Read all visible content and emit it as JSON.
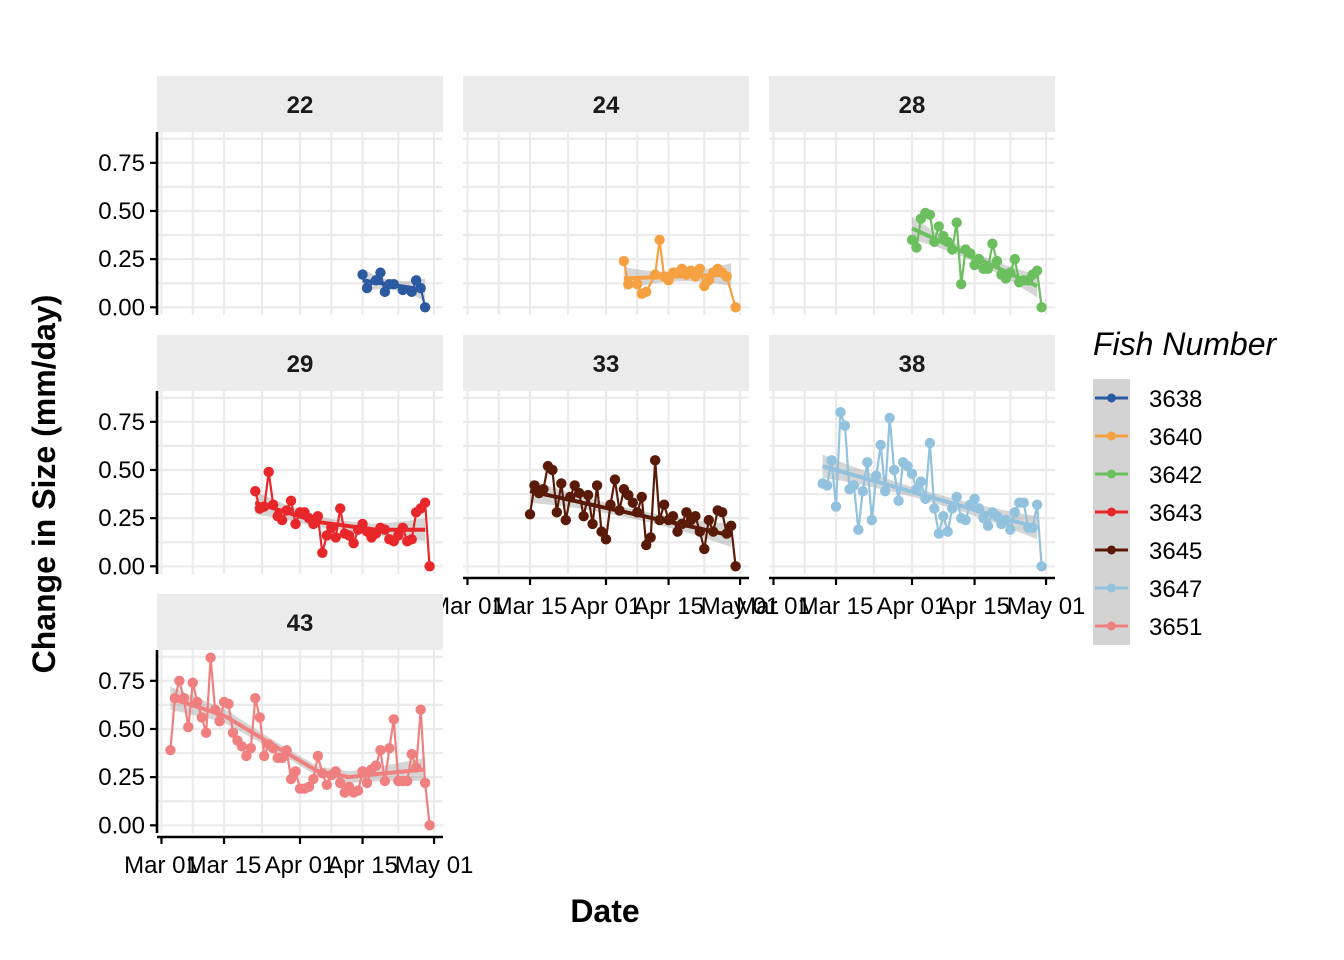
{
  "chart_data": {
    "type": "line",
    "xlabel": "Date",
    "ylabel": "Change in Size (mm/day)",
    "legend_title": "Fish Number",
    "legend_position": "right",
    "x_ticks": [
      "Mar 01",
      "Mar 15",
      "Apr 01",
      "Apr 15",
      "May 01"
    ],
    "x_tick_dates": [
      "2021-03-01",
      "2021-03-15",
      "2021-04-01",
      "2021-04-15",
      "2021-05-01"
    ],
    "xlim": [
      "2021-02-28",
      "2021-05-03"
    ],
    "y_ticks": [
      "0.00",
      "0.25",
      "0.50",
      "0.75"
    ],
    "y_tick_values": [
      0,
      0.25,
      0.5,
      0.75
    ],
    "ylim": [
      -0.04,
      0.91
    ],
    "grid": true,
    "series": [
      {
        "name": "3638",
        "facet": "22",
        "color": "#2c5aa0",
        "x": [
          "2021-04-15",
          "2021-04-16",
          "2021-04-18",
          "2021-04-19",
          "2021-04-20",
          "2021-04-21",
          "2021-04-22",
          "2021-04-24",
          "2021-04-26",
          "2021-04-27",
          "2021-04-28",
          "2021-04-29"
        ],
        "y": [
          0.17,
          0.1,
          0.14,
          0.18,
          0.08,
          0.12,
          0.12,
          0.09,
          0.08,
          0.14,
          0.1,
          0.0
        ],
        "trend": [
          [
            "2021-04-15",
            0.14
          ],
          [
            "2021-04-29",
            0.09
          ]
        ]
      },
      {
        "name": "3640",
        "facet": "24",
        "color": "#f5a142",
        "x": [
          "2021-04-05",
          "2021-04-06",
          "2021-04-08",
          "2021-04-09",
          "2021-04-10",
          "2021-04-12",
          "2021-04-13",
          "2021-04-14",
          "2021-04-15",
          "2021-04-16",
          "2021-04-17",
          "2021-04-18",
          "2021-04-19",
          "2021-04-20",
          "2021-04-21",
          "2021-04-22",
          "2021-04-23",
          "2021-04-24",
          "2021-04-25",
          "2021-04-26",
          "2021-04-27",
          "2021-04-28",
          "2021-04-30"
        ],
        "y": [
          0.24,
          0.12,
          0.12,
          0.07,
          0.08,
          0.17,
          0.35,
          0.16,
          0.14,
          0.18,
          0.18,
          0.2,
          0.17,
          0.19,
          0.16,
          0.2,
          0.11,
          0.14,
          0.18,
          0.2,
          0.18,
          0.16,
          0.0
        ],
        "trend": [
          [
            "2021-04-05",
            0.15
          ],
          [
            "2021-04-29",
            0.17
          ]
        ]
      },
      {
        "name": "3642",
        "facet": "28",
        "color": "#6cbf5f",
        "x": [
          "2021-04-01",
          "2021-04-02",
          "2021-04-03",
          "2021-04-04",
          "2021-04-05",
          "2021-04-06",
          "2021-04-07",
          "2021-04-08",
          "2021-04-09",
          "2021-04-10",
          "2021-04-11",
          "2021-04-12",
          "2021-04-13",
          "2021-04-14",
          "2021-04-15",
          "2021-04-16",
          "2021-04-17",
          "2021-04-18",
          "2021-04-19",
          "2021-04-20",
          "2021-04-21",
          "2021-04-22",
          "2021-04-23",
          "2021-04-24",
          "2021-04-25",
          "2021-04-26",
          "2021-04-27",
          "2021-04-28",
          "2021-04-29",
          "2021-04-30"
        ],
        "y": [
          0.35,
          0.31,
          0.46,
          0.49,
          0.48,
          0.34,
          0.42,
          0.37,
          0.34,
          0.3,
          0.44,
          0.12,
          0.3,
          0.28,
          0.22,
          0.25,
          0.2,
          0.2,
          0.33,
          0.24,
          0.17,
          0.15,
          0.18,
          0.25,
          0.13,
          0.14,
          0.14,
          0.17,
          0.19,
          0.0
        ],
        "trend": [
          [
            "2021-04-01",
            0.41
          ],
          [
            "2021-04-29",
            0.11
          ]
        ]
      },
      {
        "name": "3643",
        "facet": "29",
        "color": "#e8272b",
        "x": [
          "2021-03-22",
          "2021-03-23",
          "2021-03-24",
          "2021-03-25",
          "2021-03-26",
          "2021-03-27",
          "2021-03-28",
          "2021-03-29",
          "2021-03-30",
          "2021-03-31",
          "2021-04-01",
          "2021-04-02",
          "2021-04-03",
          "2021-04-04",
          "2021-04-05",
          "2021-04-06",
          "2021-04-07",
          "2021-04-08",
          "2021-04-09",
          "2021-04-10",
          "2021-04-11",
          "2021-04-12",
          "2021-04-13",
          "2021-04-14",
          "2021-04-15",
          "2021-04-16",
          "2021-04-17",
          "2021-04-18",
          "2021-04-19",
          "2021-04-20",
          "2021-04-21",
          "2021-04-22",
          "2021-04-23",
          "2021-04-24",
          "2021-04-25",
          "2021-04-26",
          "2021-04-27",
          "2021-04-28",
          "2021-04-29",
          "2021-04-30"
        ],
        "y": [
          0.39,
          0.3,
          0.31,
          0.49,
          0.32,
          0.26,
          0.24,
          0.29,
          0.34,
          0.22,
          0.28,
          0.28,
          0.25,
          0.22,
          0.26,
          0.07,
          0.16,
          0.2,
          0.15,
          0.3,
          0.17,
          0.16,
          0.12,
          0.19,
          0.22,
          0.18,
          0.15,
          0.17,
          0.2,
          0.19,
          0.14,
          0.13,
          0.16,
          0.2,
          0.13,
          0.14,
          0.28,
          0.3,
          0.33,
          0.0
        ],
        "trend": [
          [
            "2021-03-22",
            0.33
          ],
          [
            "2021-04-05",
            0.23
          ],
          [
            "2021-04-18",
            0.19
          ],
          [
            "2021-04-29",
            0.19
          ]
        ]
      },
      {
        "name": "3645",
        "facet": "33",
        "color": "#5a1a08",
        "x": [
          "2021-03-15",
          "2021-03-16",
          "2021-03-17",
          "2021-03-18",
          "2021-03-19",
          "2021-03-20",
          "2021-03-21",
          "2021-03-22",
          "2021-03-23",
          "2021-03-24",
          "2021-03-25",
          "2021-03-26",
          "2021-03-27",
          "2021-03-28",
          "2021-03-29",
          "2021-03-30",
          "2021-03-31",
          "2021-04-01",
          "2021-04-02",
          "2021-04-03",
          "2021-04-04",
          "2021-04-05",
          "2021-04-06",
          "2021-04-07",
          "2021-04-08",
          "2021-04-09",
          "2021-04-10",
          "2021-04-11",
          "2021-04-12",
          "2021-04-13",
          "2021-04-14",
          "2021-04-15",
          "2021-04-16",
          "2021-04-17",
          "2021-04-18",
          "2021-04-19",
          "2021-04-20",
          "2021-04-21",
          "2021-04-22",
          "2021-04-23",
          "2021-04-24",
          "2021-04-25",
          "2021-04-26",
          "2021-04-27",
          "2021-04-28",
          "2021-04-29",
          "2021-04-30"
        ],
        "y": [
          0.27,
          0.42,
          0.38,
          0.4,
          0.52,
          0.5,
          0.28,
          0.43,
          0.24,
          0.36,
          0.42,
          0.38,
          0.26,
          0.37,
          0.22,
          0.42,
          0.18,
          0.14,
          0.32,
          0.45,
          0.29,
          0.4,
          0.37,
          0.33,
          0.28,
          0.36,
          0.11,
          0.15,
          0.55,
          0.24,
          0.32,
          0.24,
          0.26,
          0.18,
          0.22,
          0.28,
          0.24,
          0.26,
          0.18,
          0.09,
          0.24,
          0.18,
          0.29,
          0.28,
          0.17,
          0.21,
          0.0
        ],
        "trend": [
          [
            "2021-03-15",
            0.39
          ],
          [
            "2021-04-29",
            0.16
          ]
        ]
      },
      {
        "name": "3647",
        "facet": "38",
        "color": "#92c2de",
        "x": [
          "2021-03-12",
          "2021-03-13",
          "2021-03-14",
          "2021-03-15",
          "2021-03-16",
          "2021-03-17",
          "2021-03-18",
          "2021-03-19",
          "2021-03-20",
          "2021-03-21",
          "2021-03-22",
          "2021-03-23",
          "2021-03-24",
          "2021-03-25",
          "2021-03-26",
          "2021-03-27",
          "2021-03-28",
          "2021-03-29",
          "2021-03-30",
          "2021-03-31",
          "2021-04-01",
          "2021-04-02",
          "2021-04-03",
          "2021-04-04",
          "2021-04-05",
          "2021-04-06",
          "2021-04-07",
          "2021-04-08",
          "2021-04-09",
          "2021-04-10",
          "2021-04-11",
          "2021-04-12",
          "2021-04-13",
          "2021-04-14",
          "2021-04-15",
          "2021-04-16",
          "2021-04-17",
          "2021-04-18",
          "2021-04-19",
          "2021-04-20",
          "2021-04-21",
          "2021-04-22",
          "2021-04-23",
          "2021-04-24",
          "2021-04-25",
          "2021-04-26",
          "2021-04-27",
          "2021-04-28",
          "2021-04-29",
          "2021-04-30"
        ],
        "y": [
          0.43,
          0.42,
          0.55,
          0.31,
          0.8,
          0.73,
          0.4,
          0.42,
          0.19,
          0.39,
          0.54,
          0.24,
          0.47,
          0.63,
          0.39,
          0.77,
          0.5,
          0.34,
          0.54,
          0.52,
          0.48,
          0.4,
          0.44,
          0.35,
          0.64,
          0.3,
          0.17,
          0.26,
          0.18,
          0.3,
          0.36,
          0.25,
          0.24,
          0.32,
          0.35,
          0.3,
          0.25,
          0.21,
          0.28,
          0.26,
          0.22,
          0.24,
          0.19,
          0.28,
          0.33,
          0.33,
          0.2,
          0.2,
          0.32,
          0.0
        ],
        "trend": [
          [
            "2021-03-12",
            0.52
          ],
          [
            "2021-04-29",
            0.2
          ]
        ]
      },
      {
        "name": "3651",
        "facet": "43",
        "color": "#f08080",
        "x": [
          "2021-03-03",
          "2021-03-04",
          "2021-03-05",
          "2021-03-06",
          "2021-03-07",
          "2021-03-08",
          "2021-03-09",
          "2021-03-10",
          "2021-03-11",
          "2021-03-12",
          "2021-03-13",
          "2021-03-14",
          "2021-03-15",
          "2021-03-16",
          "2021-03-17",
          "2021-03-18",
          "2021-03-19",
          "2021-03-20",
          "2021-03-21",
          "2021-03-22",
          "2021-03-23",
          "2021-03-24",
          "2021-03-25",
          "2021-03-26",
          "2021-03-27",
          "2021-03-28",
          "2021-03-29",
          "2021-03-30",
          "2021-03-31",
          "2021-04-01",
          "2021-04-02",
          "2021-04-03",
          "2021-04-04",
          "2021-04-05",
          "2021-04-06",
          "2021-04-07",
          "2021-04-08",
          "2021-04-09",
          "2021-04-10",
          "2021-04-11",
          "2021-04-12",
          "2021-04-13",
          "2021-04-14",
          "2021-04-15",
          "2021-04-16",
          "2021-04-17",
          "2021-04-18",
          "2021-04-19",
          "2021-04-20",
          "2021-04-21",
          "2021-04-22",
          "2021-04-23",
          "2021-04-24",
          "2021-04-25",
          "2021-04-26",
          "2021-04-27",
          "2021-04-28",
          "2021-04-29",
          "2021-04-30"
        ],
        "y": [
          0.39,
          0.66,
          0.75,
          0.66,
          0.51,
          0.74,
          0.64,
          0.56,
          0.48,
          0.87,
          0.6,
          0.54,
          0.64,
          0.63,
          0.48,
          0.44,
          0.41,
          0.36,
          0.4,
          0.66,
          0.56,
          0.36,
          0.42,
          0.4,
          0.35,
          0.35,
          0.39,
          0.24,
          0.28,
          0.19,
          0.19,
          0.2,
          0.24,
          0.36,
          0.27,
          0.21,
          0.26,
          0.28,
          0.22,
          0.17,
          0.2,
          0.17,
          0.18,
          0.28,
          0.22,
          0.29,
          0.31,
          0.39,
          0.23,
          0.4,
          0.55,
          0.23,
          0.23,
          0.23,
          0.37,
          0.3,
          0.6,
          0.22,
          0.0
        ],
        "trend": [
          [
            "2021-03-03",
            0.66
          ],
          [
            "2021-03-15",
            0.57
          ],
          [
            "2021-03-25",
            0.43
          ],
          [
            "2021-04-05",
            0.28
          ],
          [
            "2021-04-12",
            0.25
          ],
          [
            "2021-04-20",
            0.27
          ],
          [
            "2021-04-29",
            0.29
          ]
        ]
      }
    ]
  }
}
